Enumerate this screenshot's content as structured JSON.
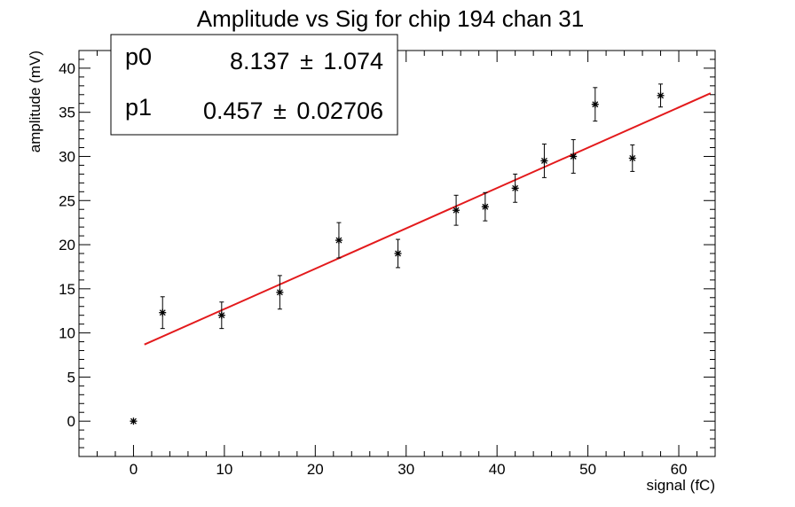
{
  "chart_data": {
    "type": "scatter",
    "title": "Amplitude vs Sig for chip 194 chan 31",
    "xlabel": "signal (fC)",
    "ylabel": "amplitude (mV)",
    "xlim": [
      -6,
      64
    ],
    "ylim": [
      -4,
      42
    ],
    "xticks": [
      0,
      10,
      20,
      30,
      40,
      50,
      60
    ],
    "yticks": [
      0,
      5,
      10,
      15,
      20,
      25,
      30,
      35,
      40
    ],
    "grid": false,
    "series": [
      {
        "marker": "star",
        "color": "#000000",
        "points": [
          {
            "x": 0.0,
            "y": 0.0,
            "err": 0.0
          },
          {
            "x": 3.2,
            "y": 12.3,
            "err": 1.8
          },
          {
            "x": 9.7,
            "y": 12.0,
            "err": 1.5
          },
          {
            "x": 16.1,
            "y": 14.6,
            "err": 1.9
          },
          {
            "x": 22.6,
            "y": 20.5,
            "err": 2.0
          },
          {
            "x": 29.1,
            "y": 19.0,
            "err": 1.6
          },
          {
            "x": 35.5,
            "y": 23.9,
            "err": 1.7
          },
          {
            "x": 38.7,
            "y": 24.3,
            "err": 1.6
          },
          {
            "x": 42.0,
            "y": 26.4,
            "err": 1.6
          },
          {
            "x": 45.2,
            "y": 29.5,
            "err": 1.9
          },
          {
            "x": 48.4,
            "y": 30.0,
            "err": 1.9
          },
          {
            "x": 50.8,
            "y": 35.9,
            "err": 1.9
          },
          {
            "x": 54.9,
            "y": 29.8,
            "err": 1.5
          },
          {
            "x": 58.0,
            "y": 36.9,
            "err": 1.3
          }
        ]
      }
    ],
    "fit": {
      "type": "line",
      "color": "#e31a1c",
      "x_range": [
        1.2,
        63.5
      ]
    },
    "stats_box": {
      "position": "top-left",
      "rows": [
        {
          "name": "p0",
          "value": "8.137",
          "error": "1.074"
        },
        {
          "name": "p1",
          "value": "0.457",
          "error": "0.02706"
        }
      ],
      "pm_symbol": "±"
    }
  }
}
